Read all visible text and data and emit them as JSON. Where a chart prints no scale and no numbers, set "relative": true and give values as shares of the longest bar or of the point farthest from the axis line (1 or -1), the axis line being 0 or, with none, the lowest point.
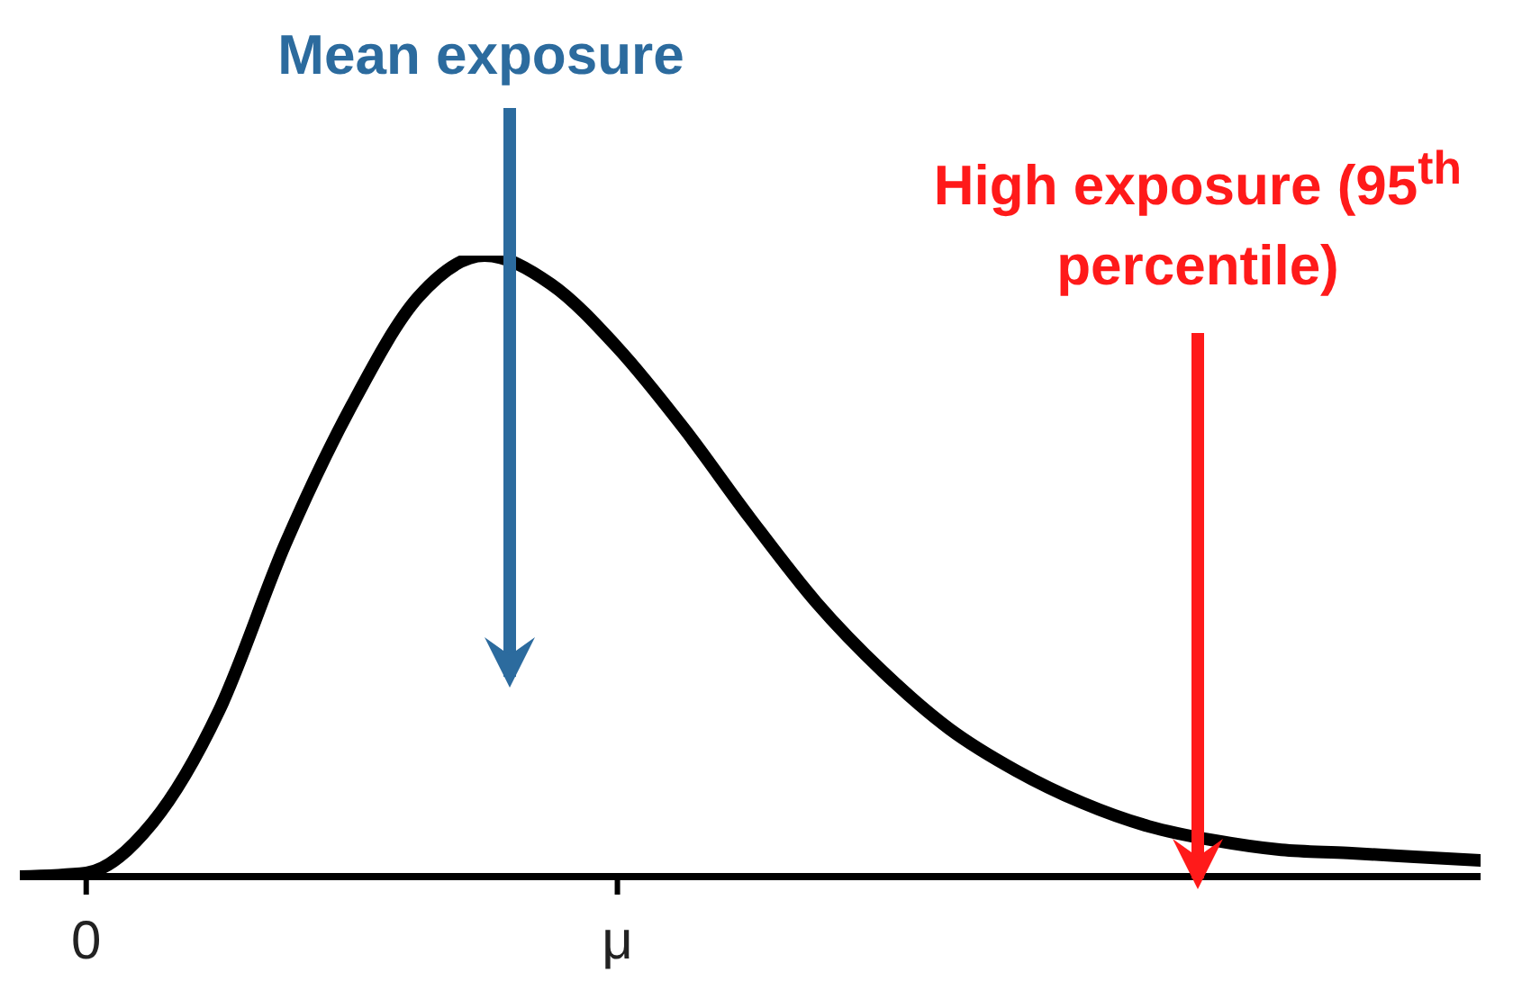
{
  "chart_data": {
    "type": "line",
    "relative": true,
    "color": "#000000",
    "marker": "none",
    "tick_labels": "x",
    "categories": [
      null,
      "0",
      null,
      null,
      null,
      null,
      null,
      null,
      null,
      "μ",
      null,
      null,
      null,
      null,
      null,
      null,
      null,
      null,
      null,
      null,
      null,
      null,
      null
    ],
    "values": [
      0,
      0.006,
      0.087,
      0.267,
      0.536,
      0.759,
      0.933,
      1,
      0.954,
      0.852,
      0.722,
      0.577,
      0.441,
      0.33,
      0.238,
      0.171,
      0.119,
      0.081,
      0.058,
      0.043,
      0.038,
      0.032,
      0.026
    ],
    "annotations": [
      "Mean exposure",
      "High exposure (95$^{th}$ percentile)"
    ]
  }
}
